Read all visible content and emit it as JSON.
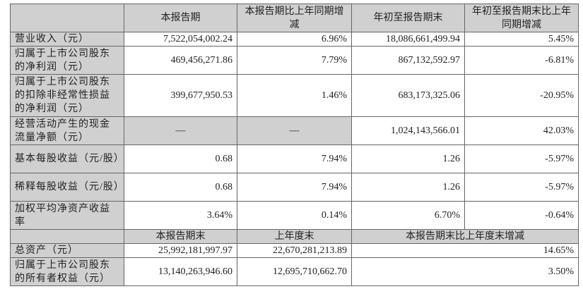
{
  "header": [
    "",
    "本报告期",
    "本报告期比上年同期增减",
    "年初至报告期末",
    "年初至报告期末比上年同期增减"
  ],
  "rows": [
    {
      "label": "营业收入（元）",
      "v": [
        "7,522,054,002.24",
        "6.96%",
        "18,086,661,499.94",
        "5.45%"
      ]
    },
    {
      "label": "归属于上市公司股东的净利润（元）",
      "v": [
        "469,456,271.86",
        "7.79%",
        "867,132,592.97",
        "-6.81%"
      ]
    },
    {
      "label": "归属于上市公司股东的扣除非经常性损益的净利润（元）",
      "v": [
        "399,677,950.53",
        "1.46%",
        "683,173,325.06",
        "-20.95%"
      ]
    },
    {
      "label": "经营活动产生的现金流量净额（元）",
      "v": [
        "—",
        "—",
        "1,024,143,566.01",
        "42.03%"
      ]
    },
    {
      "label": "基本每股收益（元/股）",
      "v": [
        "0.68",
        "7.94%",
        "1.26",
        "-5.97%"
      ]
    },
    {
      "label": "稀释每股收益（元/股）",
      "v": [
        "0.68",
        "7.94%",
        "1.26",
        "-5.97%"
      ]
    },
    {
      "label": "加权平均净资产收益率",
      "v": [
        "3.64%",
        "0.14%",
        "6.70%",
        "-0.64%"
      ]
    }
  ],
  "header2": [
    "",
    "本报告期末",
    "上年度末",
    "本报告期末比上年度末增减"
  ],
  "rows2": [
    {
      "label": "总资产（元）",
      "v": [
        "25,992,181,997.97",
        "22,670,281,213.89",
        "14.65%"
      ]
    },
    {
      "label": "归属于上市公司股东的所有者权益（元）",
      "v": [
        "13,140,263,946.60",
        "12,695,710,662.70",
        "3.50%"
      ]
    }
  ]
}
